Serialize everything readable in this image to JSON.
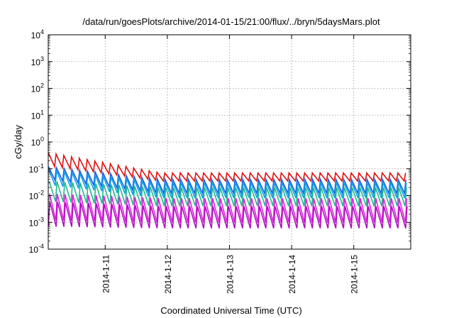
{
  "chart_data": {
    "type": "line",
    "title": "/data/run/goesPlots/archive/2014-01-15/21:00/flux/../bryn/5daysMars.plot",
    "xlabel": "Coordinated Universal Time (UTC)",
    "ylabel": "cGy/day",
    "yscale": "log",
    "ylim": [
      0.0001,
      10000
    ],
    "xlim": [
      "2014-01-10T02:00",
      "2014-01-15T22:00"
    ],
    "x_ticks": [
      "2014-1-11",
      "2014-1-12",
      "2014-1-13",
      "2014-1-14",
      "2014-1-15"
    ],
    "y_ticks": [
      {
        "base": "10",
        "exp": "-4"
      },
      {
        "base": "10",
        "exp": "-3"
      },
      {
        "base": "10",
        "exp": "-2"
      },
      {
        "base": "10",
        "exp": "-1"
      },
      {
        "base": "10",
        "exp": "0"
      },
      {
        "base": "10",
        "exp": "1"
      },
      {
        "base": "10",
        "exp": "2"
      },
      {
        "base": "10",
        "exp": "3"
      },
      {
        "base": "10",
        "exp": "4"
      }
    ],
    "grid": true,
    "oscillation_period_hours": 3,
    "series": [
      {
        "color": "#e01010",
        "peak_start": 0.4,
        "peak_end": 0.07,
        "trough_start": 0.13,
        "trough_end": 0.035
      },
      {
        "color": "#1060e0",
        "peak_start": 0.12,
        "peak_end": 0.04,
        "trough_start": 0.04,
        "trough_end": 0.012
      },
      {
        "color": "#10a0e8",
        "peak_start": 0.09,
        "peak_end": 0.03,
        "trough_start": 0.025,
        "trough_end": 0.008
      },
      {
        "color": "#20b890",
        "peak_start": 0.035,
        "peak_end": 0.02,
        "trough_start": 0.006,
        "trough_end": 0.004
      },
      {
        "color": "#e020e0",
        "peak_start": 0.012,
        "peak_end": 0.008,
        "trough_start": 0.0012,
        "trough_end": 0.001
      },
      {
        "color": "#b010c0",
        "peak_start": 0.006,
        "peak_end": 0.004,
        "trough_start": 0.0007,
        "trough_end": 0.0006
      }
    ]
  }
}
